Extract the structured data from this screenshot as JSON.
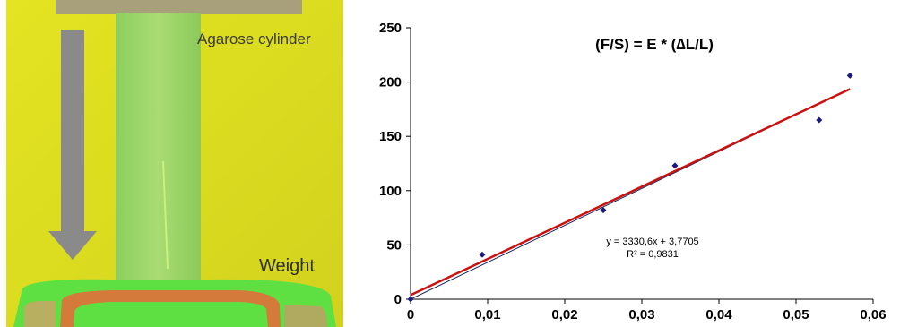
{
  "photo": {
    "label_top": "Agarose cylinder",
    "label_bottom": "Weight",
    "colors": {
      "background": "#dcdc22",
      "cylinder": "#9fd66a",
      "arrow": "#8a8a8a",
      "holder": "#5ee043",
      "weight_ring": "#d47a3a"
    }
  },
  "chart_data": {
    "type": "scatter",
    "title": "(F/S) = E * (∆L/L)",
    "xlim": [
      0,
      0.06
    ],
    "ylim": [
      0,
      250
    ],
    "x_ticks": [
      0,
      0.01,
      0.02,
      0.03,
      0.04,
      0.05,
      0.06
    ],
    "x_tick_labels": [
      "0",
      "0,01",
      "0,02",
      "0,03",
      "0,04",
      "0,05",
      "0,06"
    ],
    "y_ticks": [
      0,
      50,
      100,
      150,
      200,
      250
    ],
    "y_tick_labels": [
      "0",
      "50",
      "100",
      "150",
      "200",
      "250"
    ],
    "points": [
      {
        "x": 0,
        "y": 0
      },
      {
        "x": 0.0093,
        "y": 41
      },
      {
        "x": 0.025,
        "y": 82
      },
      {
        "x": 0.0343,
        "y": 123
      },
      {
        "x": 0.053,
        "y": 165
      },
      {
        "x": 0.057,
        "y": 206
      }
    ],
    "trendline": {
      "slope": 3330.6,
      "intercept": 3.7705,
      "x_range": [
        0,
        0.057
      ]
    },
    "reference_line": {
      "slope": 3400,
      "intercept": 0,
      "x_range": [
        0,
        0.057
      ]
    },
    "equation_text": "y = 3330,6x + 3,7705",
    "r2_text": "R² = 0,9831",
    "colors": {
      "points": "#1a1a80",
      "trendline": "#cc1111",
      "reference_line": "#1a2a5a",
      "axis": "#000000"
    }
  }
}
